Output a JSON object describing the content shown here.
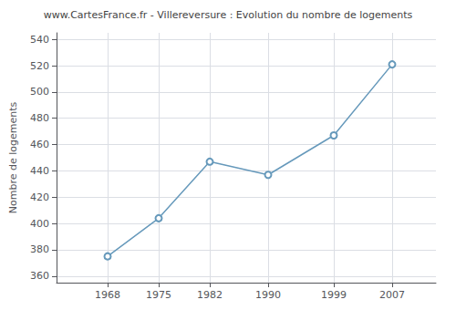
{
  "chart_data": {
    "type": "line",
    "title": "www.CartesFrance.fr - Villereversure : Evolution du nombre de logements",
    "ylabel": "Nombre de logements",
    "x": [
      1968,
      1975,
      1982,
      1990,
      1999,
      2007
    ],
    "values": [
      375,
      404,
      447,
      437,
      467,
      521
    ],
    "color": "#6699bb",
    "marker": "circle",
    "xlim": [
      1961,
      2013
    ],
    "xticks": [
      1968,
      1975,
      1982,
      1990,
      1999,
      2007
    ],
    "ylim": [
      355,
      545
    ],
    "yticks": [
      360,
      380,
      400,
      420,
      440,
      460,
      480,
      500,
      520,
      540
    ],
    "grid": true
  }
}
